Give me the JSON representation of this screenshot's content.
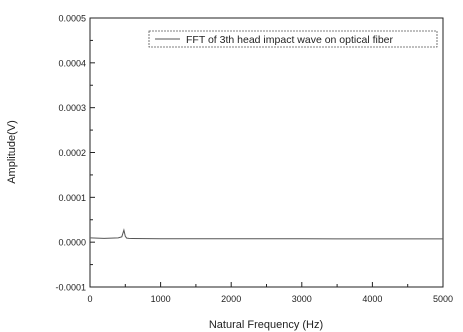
{
  "chart_data": {
    "type": "line",
    "xlabel": "Natural Frequency (Hz)",
    "ylabel": "Amplitude(V)",
    "xlim": [
      0,
      5000
    ],
    "ylim": [
      -0.0001,
      0.0005
    ],
    "x_ticks": [
      "0",
      "1000",
      "2000",
      "3000",
      "4000",
      "5000"
    ],
    "y_ticks": [
      "-0.0001",
      "0.0000",
      "0.0001",
      "0.0002",
      "0.0003",
      "0.0004",
      "0.0005"
    ],
    "grid": false,
    "legend_position": "top-right",
    "series": [
      {
        "name": "FFT of 3th head impact wave on optical fiber",
        "color": "#555555",
        "x": [
          10,
          100,
          200,
          300,
          400,
          450,
          480,
          500,
          520,
          550,
          600,
          800,
          1000,
          1500,
          2000,
          2500,
          3000,
          3500,
          4000,
          4500,
          5000
        ],
        "y": [
          9.5e-06,
          9e-06,
          8.5e-06,
          9e-06,
          9.5e-06,
          1.2e-05,
          2.7e-05,
          1.3e-05,
          9e-06,
          8.5e-06,
          8.2e-06,
          8e-06,
          7.8e-06,
          7.6e-06,
          7.5e-06,
          7.4e-06,
          7.4e-06,
          7.3e-06,
          7.3e-06,
          7.2e-06,
          7.2e-06
        ]
      }
    ]
  }
}
